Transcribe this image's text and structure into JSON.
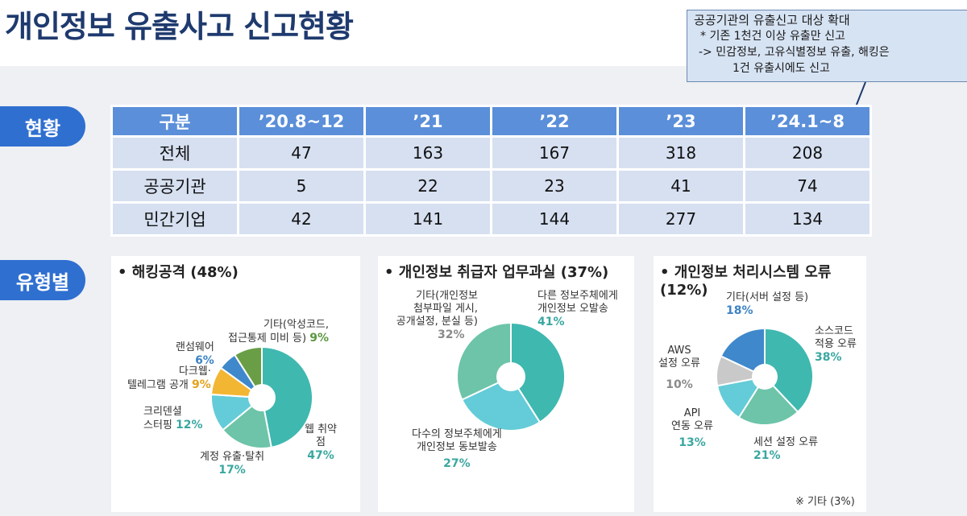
{
  "title": "개인정보 유출사고 신고현황",
  "callout": {
    "line1": "공공기관의 유출신고 대상 확대",
    "line2": "* 기존 1천건 이상 유출만 신고",
    "line3": "->   민감정보, 고유식별정보 유출, 해킹은",
    "line4": "1건 유출시에도 신고"
  },
  "sections": {
    "status": "현황",
    "type": "유형별"
  },
  "table": {
    "headers": [
      "구분",
      "’20.8~12",
      "’21",
      "’22",
      "’23",
      "’24.1~8"
    ],
    "rows": [
      {
        "label": "전체",
        "values": [
          "47",
          "163",
          "167",
          "318",
          "208"
        ]
      },
      {
        "label": "공공기관",
        "values": [
          "5",
          "22",
          "23",
          "41",
          "74"
        ]
      },
      {
        "label": "민간기업",
        "values": [
          "42",
          "141",
          "144",
          "277",
          "134"
        ]
      }
    ]
  },
  "colors": {
    "teal": "#3fb8b0",
    "gray": "#c9c9c9",
    "cyan": "#63ccd8",
    "green_teal": "#6dc4a9",
    "blue": "#3f88cc",
    "orange": "#f3b633",
    "olive": "#6a9e46",
    "header_blue": "#5b8fd9",
    "pill_blue": "#2f6fd0"
  },
  "chart_data": [
    {
      "type": "pie",
      "title": "• 해킹공격 (48%)",
      "slices": [
        {
          "label_1": "웹 취약",
          "label_2": "점",
          "value": 47,
          "pct": "47%"
        },
        {
          "label_1": "계정 유출·탈취",
          "value": 17,
          "pct": "17%"
        },
        {
          "label_1": "크리덴셜",
          "label_2": "스터핑",
          "value": 12,
          "pct": "12%"
        },
        {
          "label_1": "다크웹·",
          "label_2": "텔레그램 공개",
          "value": 9,
          "pct": "9%"
        },
        {
          "label_1": "랜섬웨어",
          "value": 6,
          "pct": "6%"
        },
        {
          "label_1": "기타(악성코드,",
          "label_2": "접근통제 미비 등)",
          "value": 9,
          "pct": "9%"
        }
      ]
    },
    {
      "type": "pie",
      "title": "• 개인정보 취급자 업무과실 (37%)",
      "slices": [
        {
          "label_1": "다른 정보주체에게",
          "label_2": "개인정보 오발송",
          "value": 41,
          "pct": "41%"
        },
        {
          "label_1": "다수의 정보주체에게",
          "label_2": "개인정보 동보발송",
          "value": 27,
          "pct": "27%"
        },
        {
          "label_1": "기타(개인정보",
          "label_2": "첨부파일 게시,",
          "label_3": "공개설정, 분실 등)",
          "value": 32,
          "pct": "32%"
        }
      ]
    },
    {
      "type": "pie",
      "title": "• 개인정보 처리시스템 오류 (12%)",
      "note": "※ 기타 (3%)",
      "slices": [
        {
          "label_1": "소스코드",
          "label_2": "적용 오류",
          "value": 38,
          "pct": "38%"
        },
        {
          "label_1": "세션 설정 오류",
          "value": 21,
          "pct": "21%"
        },
        {
          "label_1": "API",
          "label_2": "연동 오류",
          "value": 13,
          "pct": "13%"
        },
        {
          "label_1": "AWS",
          "label_2": "설정 오류",
          "value": 10,
          "pct": "10%"
        },
        {
          "label_1": "기타(서버 설정 등)",
          "value": 18,
          "pct": "18%"
        }
      ]
    }
  ]
}
